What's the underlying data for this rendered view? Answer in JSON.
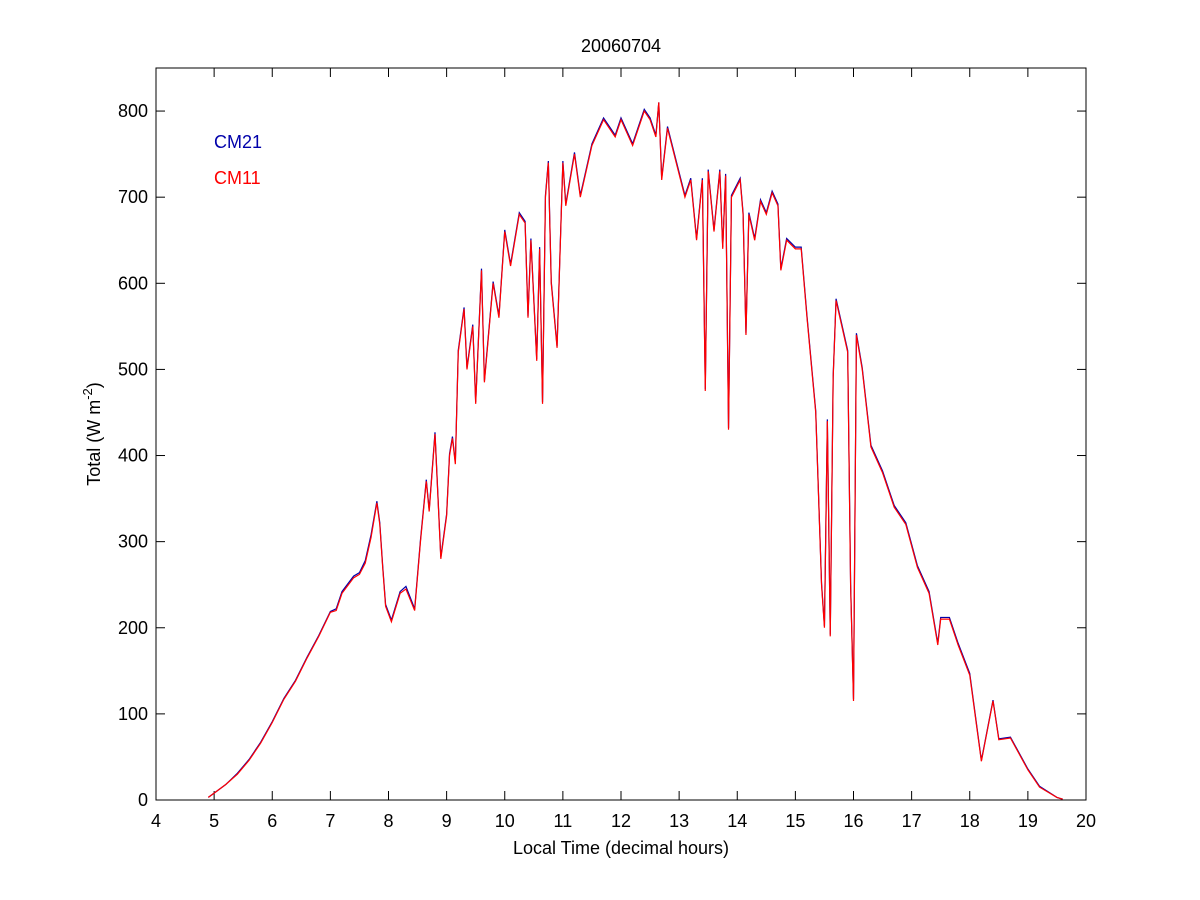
{
  "chart_data": {
    "type": "line",
    "title": "20060704",
    "xlabel": "Local Time (decimal hours)",
    "ylabel": [
      "Total (W m",
      "-2",
      ")"
    ],
    "xlim": [
      4,
      20
    ],
    "xticks": [
      4,
      5,
      6,
      7,
      8,
      9,
      10,
      11,
      12,
      13,
      14,
      15,
      16,
      17,
      18,
      19,
      20
    ],
    "ylim": [
      0,
      850
    ],
    "yticks": [
      0,
      100,
      200,
      300,
      400,
      500,
      600,
      700,
      800
    ],
    "legend": "upper left",
    "x": [
      4.9,
      5.0,
      5.2,
      5.4,
      5.6,
      5.8,
      6.0,
      6.2,
      6.4,
      6.6,
      6.8,
      7.0,
      7.1,
      7.2,
      7.4,
      7.5,
      7.6,
      7.7,
      7.8,
      7.85,
      7.9,
      7.95,
      8.05,
      8.2,
      8.3,
      8.45,
      8.55,
      8.65,
      8.7,
      8.8,
      8.9,
      9.0,
      9.05,
      9.1,
      9.15,
      9.2,
      9.3,
      9.35,
      9.45,
      9.5,
      9.6,
      9.65,
      9.8,
      9.9,
      10.0,
      10.1,
      10.25,
      10.35,
      10.4,
      10.45,
      10.55,
      10.6,
      10.65,
      10.7,
      10.75,
      10.8,
      10.9,
      11.0,
      11.05,
      11.2,
      11.3,
      11.5,
      11.7,
      11.9,
      12.0,
      12.2,
      12.4,
      12.5,
      12.6,
      12.65,
      12.7,
      12.8,
      12.95,
      13.1,
      13.2,
      13.3,
      13.4,
      13.45,
      13.5,
      13.6,
      13.7,
      13.75,
      13.8,
      13.85,
      13.9,
      14.05,
      14.1,
      14.15,
      14.2,
      14.3,
      14.4,
      14.5,
      14.6,
      14.7,
      14.75,
      14.85,
      15.0,
      15.1,
      15.2,
      15.35,
      15.45,
      15.5,
      15.55,
      15.6,
      15.65,
      15.7,
      15.8,
      15.9,
      15.95,
      16.0,
      16.05,
      16.15,
      16.3,
      16.5,
      16.7,
      16.9,
      17.1,
      17.3,
      17.45,
      17.5,
      17.65,
      17.8,
      18.0,
      18.2,
      18.3,
      18.4,
      18.5,
      18.7,
      19.0,
      19.2,
      19.5,
      19.6
    ],
    "series": [
      {
        "name": "CM21",
        "color": "#0000aa",
        "values": [
          3,
          8,
          18,
          31,
          47,
          67,
          91,
          118,
          139,
          166,
          191,
          219,
          222,
          242,
          260,
          264,
          278,
          308,
          347,
          322,
          272,
          227,
          209,
          242,
          248,
          222,
          302,
          372,
          337,
          427,
          282,
          332,
          402,
          422,
          392,
          522,
          572,
          502,
          552,
          462,
          617,
          487,
          602,
          562,
          662,
          622,
          682,
          672,
          562,
          652,
          512,
          642,
          462,
          702,
          742,
          602,
          527,
          742,
          692,
          752,
          702,
          762,
          792,
          772,
          792,
          762,
          802,
          792,
          772,
          810,
          722,
          782,
          742,
          702,
          722,
          652,
          722,
          477,
          732,
          662,
          732,
          642,
          727,
          432,
          702,
          722,
          682,
          542,
          682,
          652,
          697,
          682,
          707,
          692,
          617,
          652,
          642,
          642,
          562,
          452,
          252,
          202,
          442,
          192,
          492,
          582,
          552,
          522,
          252,
          117,
          542,
          502,
          412,
          382,
          342,
          322,
          272,
          242,
          182,
          212,
          212,
          182,
          147,
          46,
          81,
          116,
          71,
          73,
          36,
          16,
          3,
          1
        ]
      },
      {
        "name": "CM11",
        "color": "#ff0000",
        "values": [
          3,
          8,
          18,
          30,
          46,
          66,
          90,
          117,
          138,
          165,
          190,
          218,
          220,
          240,
          258,
          262,
          275,
          305,
          345,
          320,
          270,
          225,
          207,
          240,
          245,
          220,
          300,
          370,
          335,
          425,
          280,
          330,
          400,
          420,
          390,
          520,
          570,
          500,
          550,
          460,
          615,
          485,
          600,
          560,
          660,
          620,
          680,
          670,
          560,
          650,
          510,
          640,
          460,
          700,
          740,
          600,
          525,
          740,
          690,
          750,
          700,
          760,
          790,
          770,
          790,
          760,
          800,
          790,
          770,
          810,
          720,
          780,
          740,
          700,
          720,
          650,
          720,
          475,
          730,
          660,
          730,
          640,
          725,
          430,
          700,
          720,
          680,
          540,
          680,
          650,
          695,
          680,
          705,
          690,
          615,
          650,
          640,
          640,
          560,
          450,
          250,
          200,
          440,
          190,
          490,
          580,
          550,
          520,
          250,
          115,
          540,
          500,
          410,
          380,
          340,
          320,
          270,
          240,
          180,
          210,
          210,
          180,
          145,
          45,
          80,
          115,
          70,
          72,
          35,
          15,
          3,
          1
        ]
      }
    ]
  }
}
